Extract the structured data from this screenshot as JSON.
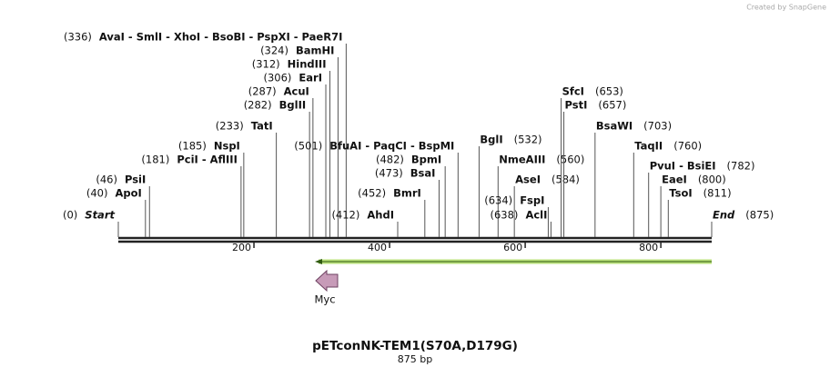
{
  "watermark": "Created by SnapGene",
  "title": "pETconNK-TEM1(S70A,D179G)",
  "subtitle": "875 bp",
  "map": {
    "start": {
      "name": "Start",
      "position": {
        "value": 0,
        "label": "(0)"
      }
    },
    "end": {
      "name": "End",
      "position": {
        "value": 875,
        "label": "(875)"
      }
    },
    "ruler_ticks": [
      200,
      400,
      600,
      800
    ],
    "sites": [
      {
        "name": "ApoI",
        "position": {
          "value": 40,
          "label": "(40)"
        }
      },
      {
        "name": "PsiI",
        "position": {
          "value": 46,
          "label": "(46)"
        }
      },
      {
        "name": "PciI  -  AflIII",
        "position": {
          "value": 181,
          "label": "(181)"
        }
      },
      {
        "name": "NspI",
        "position": {
          "value": 185,
          "label": "(185)"
        }
      },
      {
        "name": "TatI",
        "position": {
          "value": 233,
          "label": "(233)"
        }
      },
      {
        "name": "BglII",
        "position": {
          "value": 282,
          "label": "(282)"
        }
      },
      {
        "name": "AcuI",
        "position": {
          "value": 287,
          "label": "(287)"
        }
      },
      {
        "name": "EarI",
        "position": {
          "value": 306,
          "label": "(306)"
        }
      },
      {
        "name": "HindIII",
        "position": {
          "value": 312,
          "label": "(312)"
        }
      },
      {
        "name": "BamHI",
        "position": {
          "value": 324,
          "label": "(324)"
        }
      },
      {
        "name": "AvaI  -  SmlI  -  XhoI  -  BsoBI  -  PspXI  -  PaeR7I",
        "position": {
          "value": 336,
          "label": "(336)"
        }
      },
      {
        "name": "AhdI",
        "position": {
          "value": 412,
          "label": "(412)"
        }
      },
      {
        "name": "BmrI",
        "position": {
          "value": 452,
          "label": "(452)"
        }
      },
      {
        "name": "BsaI",
        "position": {
          "value": 473,
          "label": "(473)"
        }
      },
      {
        "name": "BpmI",
        "position": {
          "value": 482,
          "label": "(482)"
        }
      },
      {
        "name": "BfuAI  -  PaqCI  -  BspMI",
        "position": {
          "value": 501,
          "label": "(501)"
        }
      },
      {
        "name": "BglI",
        "position": {
          "value": 532,
          "label": "(532)"
        }
      },
      {
        "name": "NmeAIII",
        "position": {
          "value": 560,
          "label": "(560)"
        }
      },
      {
        "name": "AseI",
        "position": {
          "value": 584,
          "label": "(584)"
        }
      },
      {
        "name": "FspI",
        "position": {
          "value": 634,
          "label": "(634)"
        }
      },
      {
        "name": "AclI",
        "position": {
          "value": 638,
          "label": "(638)"
        }
      },
      {
        "name": "SfcI",
        "position": {
          "value": 653,
          "label": "(653)"
        }
      },
      {
        "name": "PstI",
        "position": {
          "value": 657,
          "label": "(657)"
        }
      },
      {
        "name": "BsaWI",
        "position": {
          "value": 703,
          "label": "(703)"
        }
      },
      {
        "name": "TaqII",
        "position": {
          "value": 760,
          "label": "(760)"
        }
      },
      {
        "name": "PvuI  -  BsiEI",
        "position": {
          "value": 782,
          "label": "(782)"
        }
      },
      {
        "name": "EaeI",
        "position": {
          "value": 800,
          "label": "(800)"
        }
      },
      {
        "name": "TsoI",
        "position": {
          "value": 811,
          "label": "(811)"
        }
      }
    ],
    "features": [
      {
        "name": "Myc"
      }
    ]
  }
}
